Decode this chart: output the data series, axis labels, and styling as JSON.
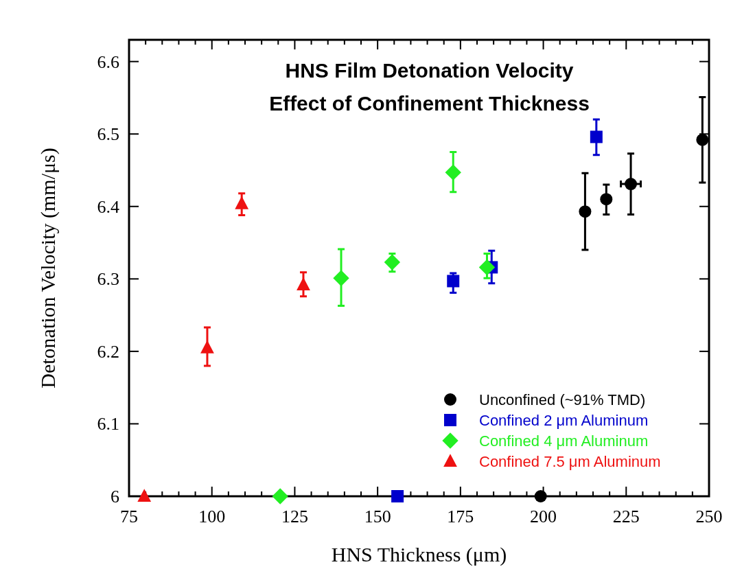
{
  "chart_data": {
    "type": "scatter",
    "title": "HNS Film Detonation Velocity",
    "subtitle": "Effect of Confinement Thickness",
    "xlabel": "HNS Thickness (μm)",
    "ylabel": "Detonation Velocity (mm/μs)",
    "xlim": [
      75,
      250
    ],
    "ylim": [
      6,
      6.63
    ],
    "xticks": [
      75,
      {
        "value": 80,
        "label": null
      },
      {
        "value": 85,
        "label": null
      },
      {
        "value": 90,
        "label": null
      },
      {
        "value": 95,
        "label": null
      },
      100,
      {
        "value": 105,
        "label": null
      },
      {
        "value": 110,
        "label": null
      },
      {
        "value": 115,
        "label": null
      },
      {
        "value": 120,
        "label": null
      },
      125,
      {
        "value": 130,
        "label": null
      },
      {
        "value": 135,
        "label": null
      },
      {
        "value": 140,
        "label": null
      },
      {
        "value": 145,
        "label": null
      },
      150,
      {
        "value": 155,
        "label": null
      },
      {
        "value": 160,
        "label": null
      },
      {
        "value": 165,
        "label": null
      },
      {
        "value": 170,
        "label": null
      },
      175,
      {
        "value": 180,
        "label": null
      },
      {
        "value": 185,
        "label": null
      },
      {
        "value": 190,
        "label": null
      },
      {
        "value": 195,
        "label": null
      },
      200,
      {
        "value": 205,
        "label": null
      },
      {
        "value": 210,
        "label": null
      },
      {
        "value": 215,
        "label": null
      },
      {
        "value": 220,
        "label": null
      },
      225,
      {
        "value": 230,
        "label": null
      },
      {
        "value": 235,
        "label": null
      },
      {
        "value": 240,
        "label": null
      },
      {
        "value": 245,
        "label": null
      },
      250
    ],
    "yticks": [
      {
        "value": 6,
        "label": "6"
      },
      6.1,
      6.2,
      6.3,
      6.4,
      6.5,
      6.6
    ],
    "grid": false,
    "legend": "bottom right",
    "series": [
      {
        "name": "Unconfined (~91% TMD)",
        "color": "#000000",
        "marker": "circle",
        "x": [
          199.2,
          212.6,
          219,
          226.4,
          248
        ],
        "values": [
          6.0,
          6.393,
          6.41,
          6.431,
          6.492
        ],
        "errors": [
          null,
          [
            6.34,
            6.446
          ],
          [
            6.389,
            6.43
          ],
          [
            6.389,
            6.473
          ],
          [
            6.433,
            6.551
          ]
        ],
        "xerrors": [
          null,
          null,
          null,
          3,
          null
        ]
      },
      {
        "name": "Confined 2 μm Aluminum",
        "color": "#0000cc",
        "marker": "square",
        "x": [
          156,
          172.8,
          184.4,
          216
        ],
        "values": [
          6.0,
          6.297,
          6.316,
          6.496
        ],
        "errors": [
          null,
          [
            6.281,
            6.308
          ],
          [
            6.294,
            6.339
          ],
          [
            6.471,
            6.52
          ]
        ]
      },
      {
        "name": "Confined 4 μm Aluminum",
        "color": "#22ee22",
        "marker": "diamond",
        "x": [
          120.6,
          139,
          154.4,
          172.8,
          183
        ],
        "values": [
          6.0,
          6.301,
          6.323,
          6.447,
          6.316
        ],
        "errors": [
          null,
          [
            6.263,
            6.341
          ],
          [
            6.31,
            6.335
          ],
          [
            6.42,
            6.475
          ],
          [
            6.301,
            6.335
          ]
        ]
      },
      {
        "name": "Confined 7.5 μm Aluminum",
        "color": "#ee1111",
        "marker": "triangle",
        "x": [
          79.6,
          98.6,
          109,
          127.6
        ],
        "values": [
          6.0,
          6.205,
          6.404,
          6.292
        ],
        "errors": [
          null,
          [
            6.18,
            6.233
          ],
          [
            6.388,
            6.418
          ],
          [
            6.276,
            6.309
          ]
        ]
      }
    ]
  }
}
